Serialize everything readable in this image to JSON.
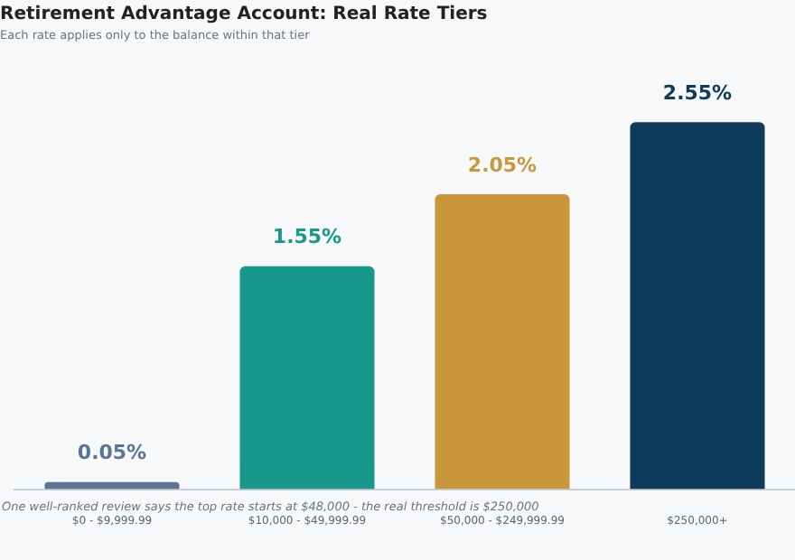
{
  "chart_data": {
    "type": "bar",
    "title": "Retirement Advantage Account: Real Rate Tiers",
    "subtitle": "Each rate applies only to the balance within that tier",
    "categories": [
      "$0 - $9,999.99",
      "$10,000 - $49,999.99",
      "$50,000 - $249,999.99",
      "$250,000+"
    ],
    "values": [
      0.05,
      1.55,
      2.05,
      2.55
    ],
    "colors": [
      "#5a7594",
      "#16998a",
      "#c9973a",
      "#0e3a5c"
    ],
    "value_labels": [
      "0.05%",
      "1.55%",
      "2.05%",
      "2.55%"
    ],
    "tick_labels": "x",
    "grid": false,
    "legend": false,
    "annotations": [
      "One well-ranked review says the top rate starts at $48,000 - the real threshold is $250,000"
    ]
  }
}
